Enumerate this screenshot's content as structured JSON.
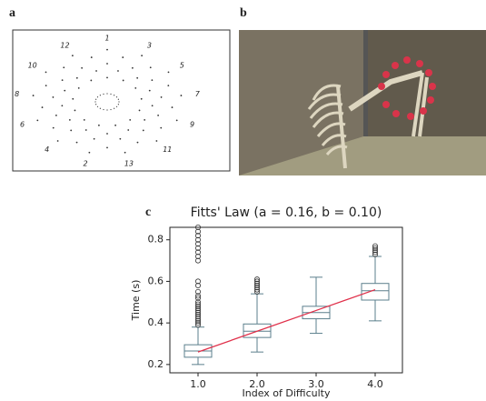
{
  "panel_labels": [
    "a",
    "b",
    "c"
  ],
  "panel_a": {
    "target_labels": [
      "1",
      "3",
      "5",
      "7",
      "9",
      "11",
      "13",
      "2",
      "4",
      "6",
      "8",
      "10",
      "12"
    ]
  },
  "chart_data": {
    "type": "box",
    "title": "Fitts' Law (a = 0.16, b = 0.10)",
    "x_label": "Index of Difficulty",
    "y_label": "Time (s)",
    "categories": [
      "1.0",
      "2.0",
      "3.0",
      "4.0"
    ],
    "boxes": [
      {
        "whislo": 0.2,
        "q1": 0.235,
        "med": 0.265,
        "q3": 0.295,
        "whishi": 0.38,
        "fliers": [
          0.39,
          0.4,
          0.41,
          0.42,
          0.43,
          0.44,
          0.45,
          0.46,
          0.47,
          0.48,
          0.49,
          0.5,
          0.52,
          0.53,
          0.55,
          0.58,
          0.6,
          0.7,
          0.72,
          0.74,
          0.76,
          0.78,
          0.8,
          0.82,
          0.84,
          0.86
        ]
      },
      {
        "whislo": 0.26,
        "q1": 0.33,
        "med": 0.36,
        "q3": 0.395,
        "whishi": 0.54,
        "fliers": [
          0.55,
          0.56,
          0.57,
          0.58,
          0.59,
          0.6,
          0.61
        ]
      },
      {
        "whislo": 0.35,
        "q1": 0.42,
        "med": 0.45,
        "q3": 0.48,
        "whishi": 0.62,
        "fliers": []
      },
      {
        "whislo": 0.41,
        "q1": 0.51,
        "med": 0.555,
        "q3": 0.59,
        "whishi": 0.72,
        "fliers": [
          0.73,
          0.74,
          0.75,
          0.76,
          0.77
        ]
      }
    ],
    "box_color": "#5b7f8c",
    "fit_line": {
      "color": "#e0304a",
      "values": [
        0.26,
        0.36,
        0.46,
        0.56
      ]
    },
    "ylim": [
      0.16,
      0.86
    ],
    "yticks": [
      0.2,
      0.4,
      0.6,
      0.8
    ],
    "grid": false
  }
}
